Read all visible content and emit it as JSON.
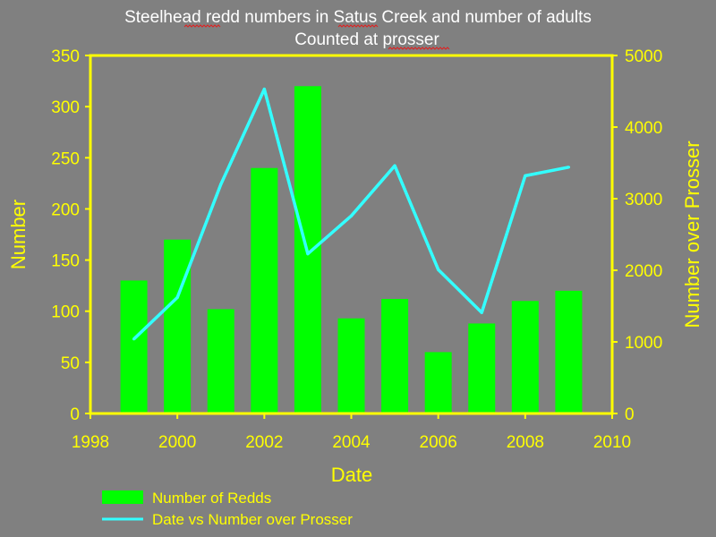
{
  "chart_data": {
    "type": "bar+line",
    "title_line1": "Steelhead redd numbers in Satus Creek and number of adults",
    "title_line2": "Counted at prosser",
    "xlabel": "Date",
    "ylabel_left": "Number",
    "ylabel_right": "Number over Prosser",
    "xlim": [
      1998,
      2010
    ],
    "x_ticks": [
      1998,
      2000,
      2002,
      2004,
      2006,
      2008,
      2010
    ],
    "ylim_left": [
      0,
      350
    ],
    "y_ticks_left": [
      0,
      50,
      100,
      150,
      200,
      250,
      300,
      350
    ],
    "ylim_right": [
      0,
      5000
    ],
    "y_ticks_right": [
      0,
      1000,
      2000,
      3000,
      4000,
      5000
    ],
    "grid": false,
    "legend_position": "bottom",
    "series": [
      {
        "name": "Number of Redds",
        "kind": "bar",
        "axis": "left",
        "color": "#00ff00",
        "x": [
          1999,
          2000,
          2001,
          2002,
          2003,
          2004,
          2005,
          2006,
          2007,
          2008,
          2009
        ],
        "values": [
          130,
          170,
          102,
          240,
          320,
          93,
          112,
          60,
          88,
          110,
          120
        ]
      },
      {
        "name": "Date vs Number over Prosser",
        "kind": "line",
        "axis": "right",
        "color": "#33ffff",
        "x": [
          1999,
          2000,
          2001,
          2002,
          2003,
          2004,
          2005,
          2006,
          2007,
          2008,
          2009
        ],
        "values": [
          1040,
          1620,
          3200,
          4530,
          2230,
          2760,
          3460,
          2010,
          1410,
          3320,
          3440
        ]
      }
    ],
    "colors": {
      "background": "#808080",
      "axis": "#ffff00",
      "text": "#ffff00",
      "title": "#ffffff"
    }
  }
}
